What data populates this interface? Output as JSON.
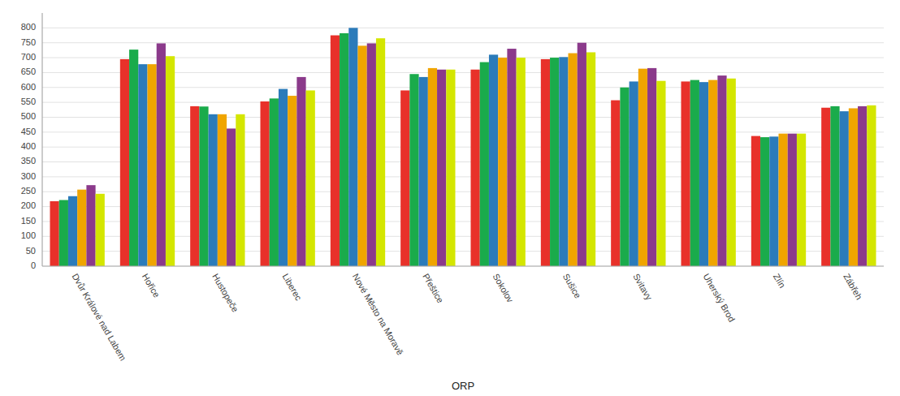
{
  "chart_data": {
    "type": "bar",
    "xlabel": "ORP",
    "categories": [
      "Dvůr Králové nad Labem",
      "Hořice",
      "Hustopeče",
      "Liberec",
      "Nové Město na Moravě",
      "Přeštice",
      "Sokolov",
      "Sušice",
      "Svitavy",
      "Uherský Brod",
      "Zlín",
      "Zábřeh"
    ],
    "series": [
      {
        "color": "#e8312a",
        "values": [
          218,
          695,
          537,
          553,
          775,
          590,
          660,
          695,
          557,
          620,
          437,
          532
        ]
      },
      {
        "color": "#1aab4b",
        "values": [
          222,
          727,
          536,
          563,
          782,
          645,
          685,
          700,
          600,
          625,
          433,
          537
        ]
      },
      {
        "color": "#2b7bba",
        "values": [
          235,
          678,
          510,
          595,
          800,
          635,
          710,
          702,
          620,
          618,
          435,
          520
        ]
      },
      {
        "color": "#f0a500",
        "values": [
          257,
          678,
          510,
          572,
          740,
          665,
          700,
          715,
          663,
          625,
          445,
          530
        ]
      },
      {
        "color": "#8b3a8b",
        "values": [
          272,
          748,
          462,
          635,
          748,
          660,
          730,
          750,
          665,
          640,
          445,
          537
        ]
      },
      {
        "color": "#d4e600",
        "values": [
          243,
          705,
          510,
          590,
          765,
          660,
          700,
          718,
          622,
          630,
          445,
          540
        ]
      }
    ],
    "ylim": [
      0,
      850
    ],
    "yticks": [
      0,
      50,
      100,
      150,
      200,
      250,
      300,
      350,
      400,
      450,
      500,
      550,
      600,
      650,
      700,
      750,
      800
    ],
    "grid": true
  }
}
